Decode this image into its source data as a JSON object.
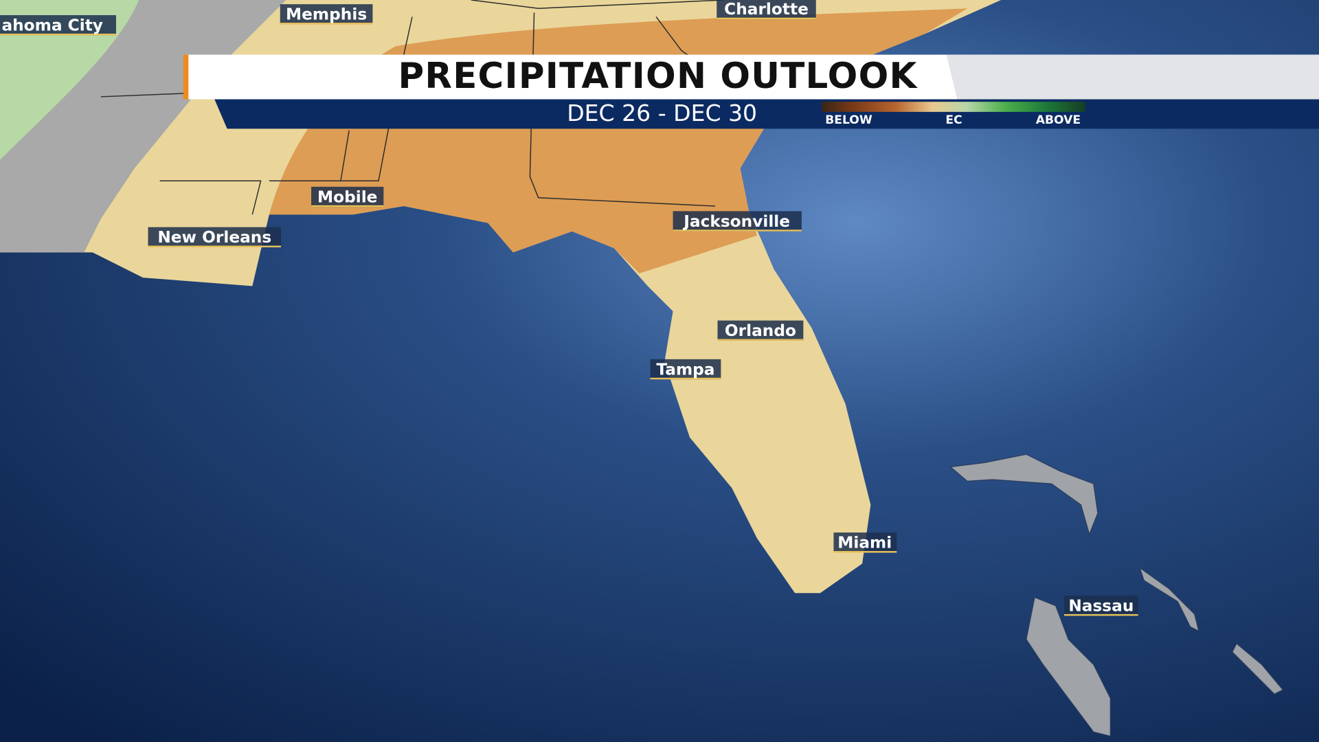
{
  "title": "PRECIPITATION OUTLOOK",
  "date_range": "DEC 26 - DEC 30",
  "legend": {
    "labels": [
      "BELOW",
      "EC",
      "ABOVE"
    ]
  },
  "cities": [
    "ahoma City",
    "Memphis",
    "Charlotte",
    "Mobile",
    "New Orleans",
    "Jacksonville",
    "Orlando",
    "Tampa",
    "Miami",
    "Nassau"
  ]
}
